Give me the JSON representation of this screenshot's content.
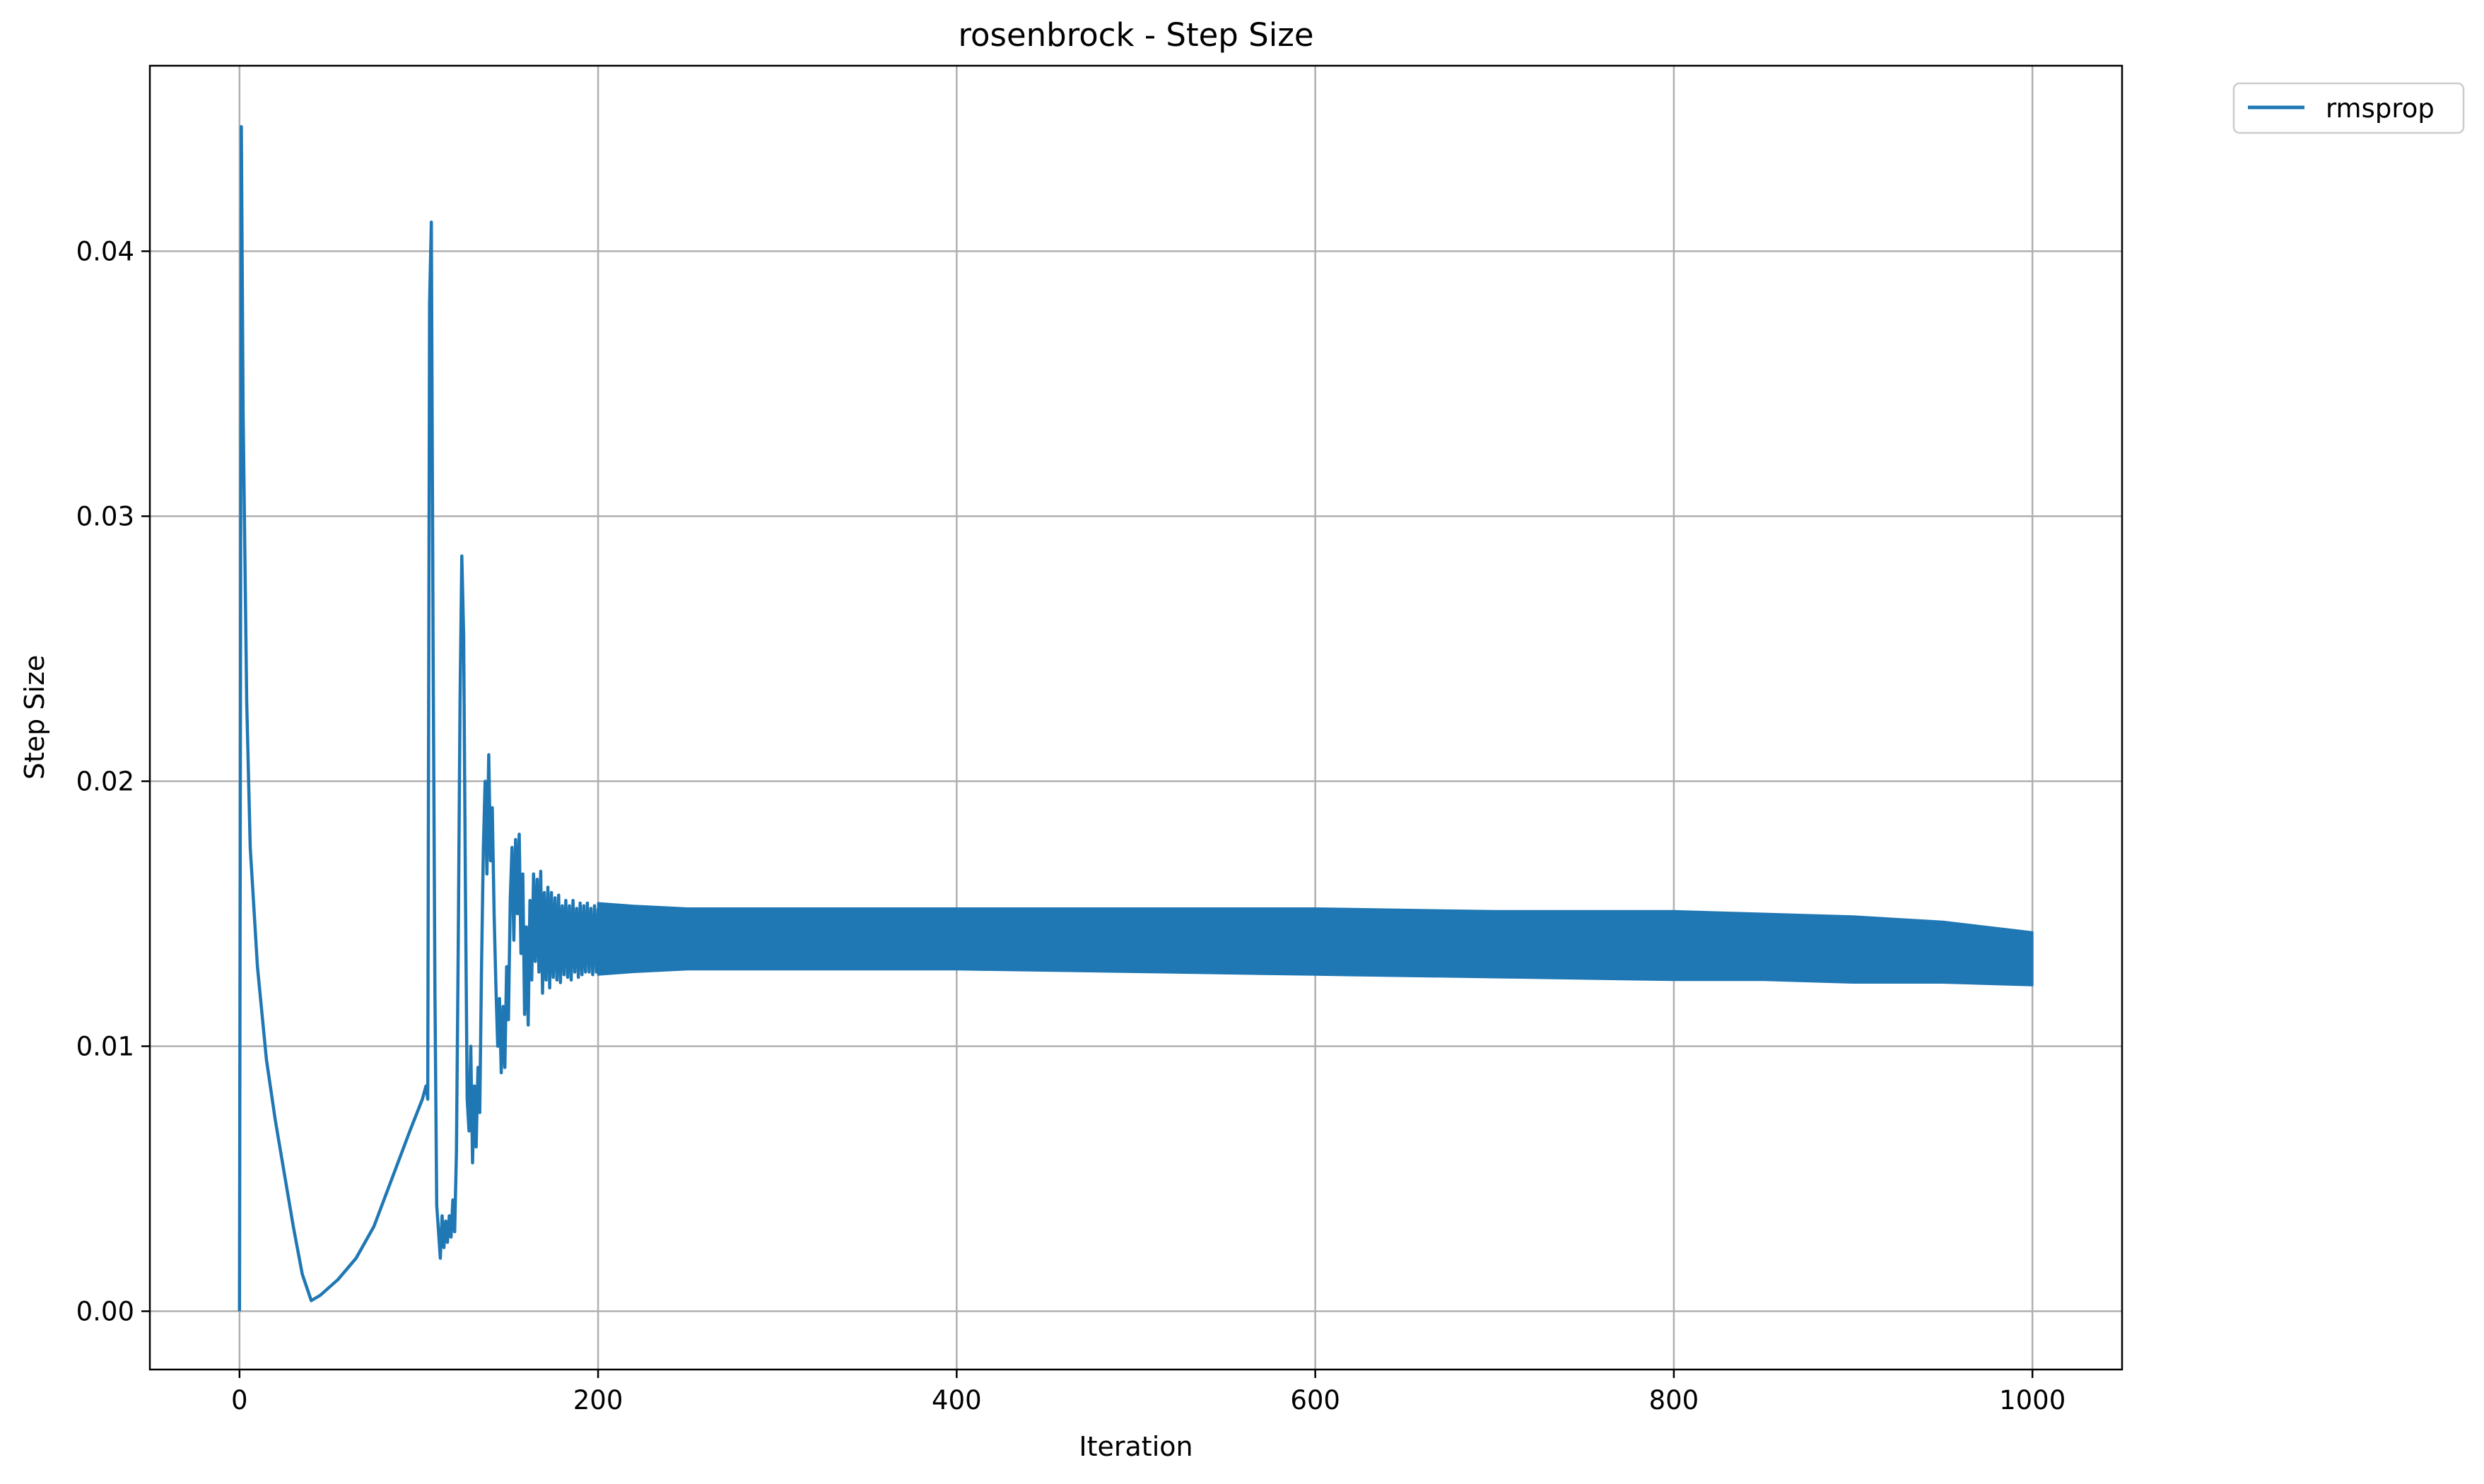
{
  "chart_data": {
    "type": "line",
    "title": "rosenbrock - Step Size",
    "xlabel": "Iteration",
    "ylabel": "Step Size",
    "xlim": [
      -50,
      1050
    ],
    "ylim": [
      -0.0022,
      0.047
    ],
    "xticks": [
      0,
      200,
      400,
      600,
      800,
      1000
    ],
    "xtick_labels": [
      "0",
      "200",
      "400",
      "600",
      "800",
      "1000"
    ],
    "yticks": [
      0.0,
      0.01,
      0.02,
      0.03,
      0.04
    ],
    "ytick_labels": [
      "0.00",
      "0.01",
      "0.02",
      "0.03",
      "0.04"
    ],
    "grid": true,
    "legend_position": "outside-top-right",
    "series": [
      {
        "name": "rmsprop",
        "color": "#1f77b4",
        "points": [
          [
            0,
            0.0
          ],
          [
            1,
            0.0447
          ],
          [
            2,
            0.034
          ],
          [
            4,
            0.023
          ],
          [
            6,
            0.0175
          ],
          [
            10,
            0.013
          ],
          [
            15,
            0.0095
          ],
          [
            20,
            0.0072
          ],
          [
            25,
            0.0052
          ],
          [
            30,
            0.0032
          ],
          [
            35,
            0.0014
          ],
          [
            40,
            0.0004
          ],
          [
            45,
            0.0006
          ],
          [
            55,
            0.0012
          ],
          [
            65,
            0.002
          ],
          [
            75,
            0.0032
          ],
          [
            85,
            0.005
          ],
          [
            95,
            0.0068
          ],
          [
            102,
            0.008
          ],
          [
            104,
            0.0085
          ],
          [
            105,
            0.008
          ],
          [
            106,
            0.038
          ],
          [
            107,
            0.0411
          ],
          [
            108,
            0.025
          ],
          [
            109,
            0.012
          ],
          [
            110,
            0.004
          ],
          [
            111,
            0.003
          ],
          [
            112,
            0.002
          ],
          [
            113,
            0.0036
          ],
          [
            114,
            0.0024
          ],
          [
            115,
            0.0034
          ],
          [
            116,
            0.0026
          ],
          [
            117,
            0.0036
          ],
          [
            118,
            0.0028
          ],
          [
            119,
            0.0042
          ],
          [
            120,
            0.003
          ],
          [
            121,
            0.006
          ],
          [
            122,
            0.014
          ],
          [
            123,
            0.023
          ],
          [
            124,
            0.0285
          ],
          [
            125,
            0.0255
          ],
          [
            126,
            0.016
          ],
          [
            127,
            0.008
          ],
          [
            128,
            0.0068
          ],
          [
            129,
            0.01
          ],
          [
            130,
            0.0056
          ],
          [
            131,
            0.0085
          ],
          [
            132,
            0.0062
          ],
          [
            133,
            0.0092
          ],
          [
            134,
            0.0075
          ],
          [
            135,
            0.013
          ],
          [
            136,
            0.0175
          ],
          [
            137,
            0.02
          ],
          [
            138,
            0.0165
          ],
          [
            139,
            0.021
          ],
          [
            140,
            0.017
          ],
          [
            141,
            0.019
          ],
          [
            142,
            0.015
          ],
          [
            143,
            0.0123
          ],
          [
            144,
            0.01
          ],
          [
            145,
            0.0118
          ],
          [
            146,
            0.009
          ],
          [
            147,
            0.0115
          ],
          [
            148,
            0.0092
          ],
          [
            149,
            0.013
          ],
          [
            150,
            0.011
          ],
          [
            151,
            0.0155
          ],
          [
            152,
            0.0175
          ],
          [
            153,
            0.014
          ],
          [
            154,
            0.0178
          ],
          [
            155,
            0.015
          ],
          [
            156,
            0.018
          ],
          [
            157,
            0.0135
          ],
          [
            158,
            0.0165
          ],
          [
            159,
            0.0112
          ],
          [
            160,
            0.0145
          ],
          [
            161,
            0.0108
          ],
          [
            162,
            0.0155
          ],
          [
            163,
            0.0125
          ],
          [
            164,
            0.0165
          ],
          [
            165,
            0.0132
          ],
          [
            166,
            0.0163
          ],
          [
            167,
            0.0128
          ],
          [
            168,
            0.0166
          ],
          [
            169,
            0.012
          ],
          [
            170,
            0.0158
          ],
          [
            171,
            0.0125
          ],
          [
            172,
            0.016
          ],
          [
            173,
            0.0122
          ],
          [
            174,
            0.0158
          ],
          [
            175,
            0.0126
          ],
          [
            176,
            0.0156
          ],
          [
            177,
            0.0125
          ],
          [
            178,
            0.0157
          ],
          [
            179,
            0.0124
          ],
          [
            180,
            0.0153
          ],
          [
            181,
            0.0127
          ],
          [
            182,
            0.0155
          ],
          [
            183,
            0.0126
          ],
          [
            184,
            0.0153
          ],
          [
            185,
            0.0125
          ],
          [
            186,
            0.0155
          ],
          [
            187,
            0.0128
          ],
          [
            188,
            0.0152
          ],
          [
            189,
            0.0126
          ],
          [
            190,
            0.0154
          ],
          [
            191,
            0.0127
          ],
          [
            192,
            0.0153
          ],
          [
            193,
            0.0128
          ],
          [
            194,
            0.0154
          ],
          [
            195,
            0.0128
          ],
          [
            196,
            0.0152
          ],
          [
            197,
            0.0127
          ],
          [
            198,
            0.0153
          ],
          [
            199,
            0.0128
          ],
          [
            200,
            0.0152
          ]
        ],
        "band": [
          [
            200,
            0.0127,
            0.0154
          ],
          [
            220,
            0.0128,
            0.0153
          ],
          [
            250,
            0.0129,
            0.0152
          ],
          [
            300,
            0.0129,
            0.0152
          ],
          [
            400,
            0.0129,
            0.0152
          ],
          [
            500,
            0.0128,
            0.0152
          ],
          [
            600,
            0.0127,
            0.0152
          ],
          [
            700,
            0.0126,
            0.0151
          ],
          [
            800,
            0.0125,
            0.0151
          ],
          [
            850,
            0.0125,
            0.015
          ],
          [
            900,
            0.0124,
            0.0149
          ],
          [
            950,
            0.0124,
            0.0147
          ],
          [
            1000,
            0.0123,
            0.0143
          ]
        ]
      }
    ]
  }
}
